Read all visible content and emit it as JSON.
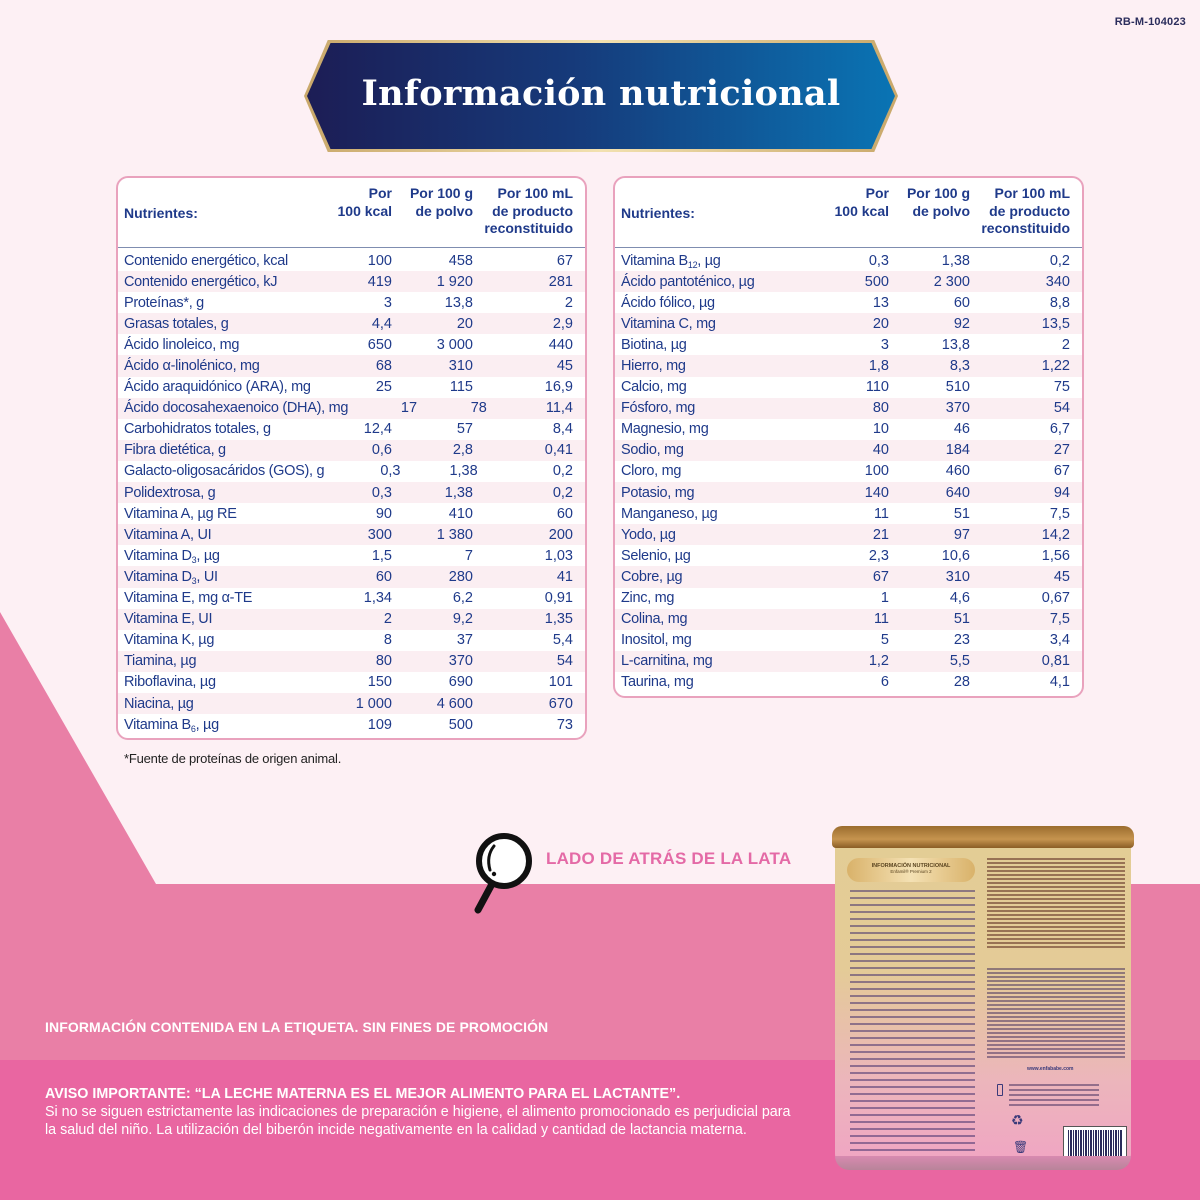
{
  "code_tag": "RB-M-104023",
  "title": "Información nutricional",
  "table_headers": {
    "nutrients": "Nutrientes:",
    "per_kcal": "Por\n100 kcal",
    "per_100g": "Por 100 g\nde polvo",
    "per_100ml": "Por 100 mL\nde producto\nreconstituido"
  },
  "left_table": [
    {
      "name": "Contenido energético, kcal",
      "kcal": "100",
      "g": "458",
      "ml": "67"
    },
    {
      "name": "Contenido energético, kJ",
      "kcal": "419",
      "g": "1 920",
      "ml": "281"
    },
    {
      "name": "Proteínas*, g",
      "kcal": "3",
      "g": "13,8",
      "ml": "2"
    },
    {
      "name": "Grasas totales, g",
      "kcal": "4,4",
      "g": "20",
      "ml": "2,9"
    },
    {
      "name": "Ácido linoleico, mg",
      "kcal": "650",
      "g": "3 000",
      "ml": "440"
    },
    {
      "name": "Ácido α-linolénico, mg",
      "kcal": "68",
      "g": "310",
      "ml": "45"
    },
    {
      "name": "Ácido araquidónico (ARA), mg",
      "kcal": "25",
      "g": "115",
      "ml": "16,9"
    },
    {
      "name": "Ácido docosahexaenoico (DHA), mg",
      "kcal": "17",
      "g": "78",
      "ml": "11,4"
    },
    {
      "name": "Carbohidratos totales, g",
      "kcal": "12,4",
      "g": "57",
      "ml": "8,4"
    },
    {
      "name": "Fibra dietética, g",
      "kcal": "0,6",
      "g": "2,8",
      "ml": "0,41"
    },
    {
      "name": "Galacto-oligosacáridos (GOS), g",
      "kcal": "0,3",
      "g": "1,38",
      "ml": "0,2"
    },
    {
      "name": "Polidextrosa, g",
      "kcal": "0,3",
      "g": "1,38",
      "ml": "0,2"
    },
    {
      "name": "Vitamina A, µg RE",
      "kcal": "90",
      "g": "410",
      "ml": "60"
    },
    {
      "name": "Vitamina A, UI",
      "kcal": "300",
      "g": "1 380",
      "ml": "200"
    },
    {
      "name": "Vitamina D3, µg",
      "kcal": "1,5",
      "g": "7",
      "ml": "1,03"
    },
    {
      "name": "Vitamina D3, UI",
      "kcal": "60",
      "g": "280",
      "ml": "41"
    },
    {
      "name": "Vitamina E, mg α-TE",
      "kcal": "1,34",
      "g": "6,2",
      "ml": "0,91"
    },
    {
      "name": "Vitamina E, UI",
      "kcal": "2",
      "g": "9,2",
      "ml": "1,35"
    },
    {
      "name": "Vitamina K, µg",
      "kcal": "8",
      "g": "37",
      "ml": "5,4"
    },
    {
      "name": "Tiamina, µg",
      "kcal": "80",
      "g": "370",
      "ml": "54"
    },
    {
      "name": "Riboflavina, µg",
      "kcal": "150",
      "g": "690",
      "ml": "101"
    },
    {
      "name": "Niacina, µg",
      "kcal": "1 000",
      "g": "4 600",
      "ml": "670"
    },
    {
      "name": "Vitamina B6, µg",
      "kcal": "109",
      "g": "500",
      "ml": "73"
    }
  ],
  "right_table": [
    {
      "name": "Vitamina B12, µg",
      "kcal": "0,3",
      "g": "1,38",
      "ml": "0,2"
    },
    {
      "name": "Ácido pantoténico, µg",
      "kcal": "500",
      "g": "2 300",
      "ml": "340"
    },
    {
      "name": "Ácido fólico, µg",
      "kcal": "13",
      "g": "60",
      "ml": "8,8"
    },
    {
      "name": "Vitamina C, mg",
      "kcal": "20",
      "g": "92",
      "ml": "13,5"
    },
    {
      "name": "Biotina, µg",
      "kcal": "3",
      "g": "13,8",
      "ml": "2"
    },
    {
      "name": "Hierro, mg",
      "kcal": "1,8",
      "g": "8,3",
      "ml": "1,22"
    },
    {
      "name": "Calcio, mg",
      "kcal": "110",
      "g": "510",
      "ml": "75"
    },
    {
      "name": "Fósforo, mg",
      "kcal": "80",
      "g": "370",
      "ml": "54"
    },
    {
      "name": "Magnesio, mg",
      "kcal": "10",
      "g": "46",
      "ml": "6,7"
    },
    {
      "name": "Sodio, mg",
      "kcal": "40",
      "g": "184",
      "ml": "27"
    },
    {
      "name": "Cloro, mg",
      "kcal": "100",
      "g": "460",
      "ml": "67"
    },
    {
      "name": "Potasio, mg",
      "kcal": "140",
      "g": "640",
      "ml": "94"
    },
    {
      "name": "Manganeso, µg",
      "kcal": "11",
      "g": "51",
      "ml": "7,5"
    },
    {
      "name": "Yodo, µg",
      "kcal": "21",
      "g": "97",
      "ml": "14,2"
    },
    {
      "name": "Selenio, µg",
      "kcal": "2,3",
      "g": "10,6",
      "ml": "1,56"
    },
    {
      "name": "Cobre, µg",
      "kcal": "67",
      "g": "310",
      "ml": "45"
    },
    {
      "name": "Zinc, mg",
      "kcal": "1",
      "g": "4,6",
      "ml": "0,67"
    },
    {
      "name": "Colina, mg",
      "kcal": "11",
      "g": "51",
      "ml": "7,5"
    },
    {
      "name": "Inositol, mg",
      "kcal": "5",
      "g": "23",
      "ml": "3,4"
    },
    {
      "name": "L-carnitina, mg",
      "kcal": "1,2",
      "g": "5,5",
      "ml": "0,81"
    },
    {
      "name": "Taurina, mg",
      "kcal": "6",
      "g": "28",
      "ml": "4,1"
    }
  ],
  "footnote": "*Fuente de proteínas de origen animal.",
  "back_label": "LADO DE ATRÁS DE LA LATA",
  "info_label": "INFORMACIÓN CONTENIDA EN LA ETIQUETA. SIN FINES DE PROMOCIÓN",
  "aviso": {
    "title": "AVISO IMPORTANTE: “LA LECHE MATERNA ES EL MEJOR ALIMENTO PARA EL LACTANTE”.",
    "body": "Si no se siguen estrictamente las indicaciones de preparación e higiene, el alimento promocionado es perjudicial para la salud del niño. La utilización del biberón incide negativamente en la calidad y cantidad de lactancia materna."
  },
  "can": {
    "heading": "INFORMACIÓN NUTRICIONAL",
    "subheading": "Enfamil® Premium 2",
    "website": "www.enfababe.com",
    "barcode": "7 506205 811357"
  },
  "colors": {
    "navy_text": "#1f3a8a",
    "panel_bg": "#fdf0f4",
    "mid_pink": "#e97fa6",
    "hot_pink": "#e966a1",
    "label_pink": "#e46aa6",
    "table_border": "#e9a2bd"
  }
}
